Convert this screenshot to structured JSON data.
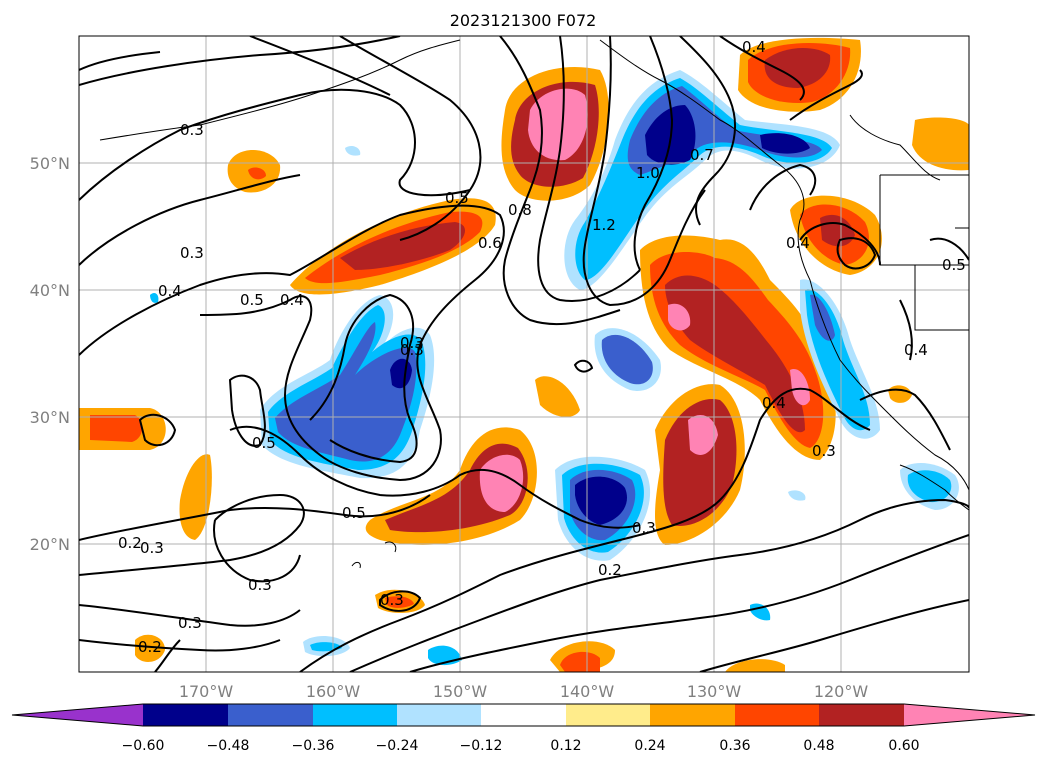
{
  "map": {
    "title": "2023121300 F072",
    "lat_labels": [
      "50°N",
      "40°N",
      "30°N",
      "20°N"
    ],
    "lon_labels": [
      "170°W",
      "160°W",
      "150°W",
      "140°W",
      "130°W",
      "120°W"
    ],
    "contour_labels": [
      "0.3",
      "0.3",
      "0.4",
      "0.5",
      "0.4",
      "0.5",
      "0.6",
      "0.8",
      "1.2",
      "1.0",
      "0.7",
      "0.4",
      "0.4",
      "0.3",
      "0.5",
      "0.5",
      "0.3",
      "0.3",
      "0.2",
      "0.3",
      "0.3",
      "0.2",
      "0.3",
      "0.3",
      "0.2",
      "0.3",
      "0.4",
      "0.5",
      "0.4"
    ]
  },
  "colorbar": {
    "tick_labels": [
      "−0.60",
      "−0.48",
      "−0.36",
      "−0.24",
      "−0.12",
      "0.12",
      "0.24",
      "0.36",
      "0.48",
      "0.60"
    ],
    "colors": [
      "#9932cc",
      "#00008b",
      "#3a5fcd",
      "#00bfff",
      "#b0e2ff",
      "#ffffff",
      "#ffec8b",
      "#ffa500",
      "#ff4500",
      "#b22222",
      "#ff83b4"
    ]
  }
}
